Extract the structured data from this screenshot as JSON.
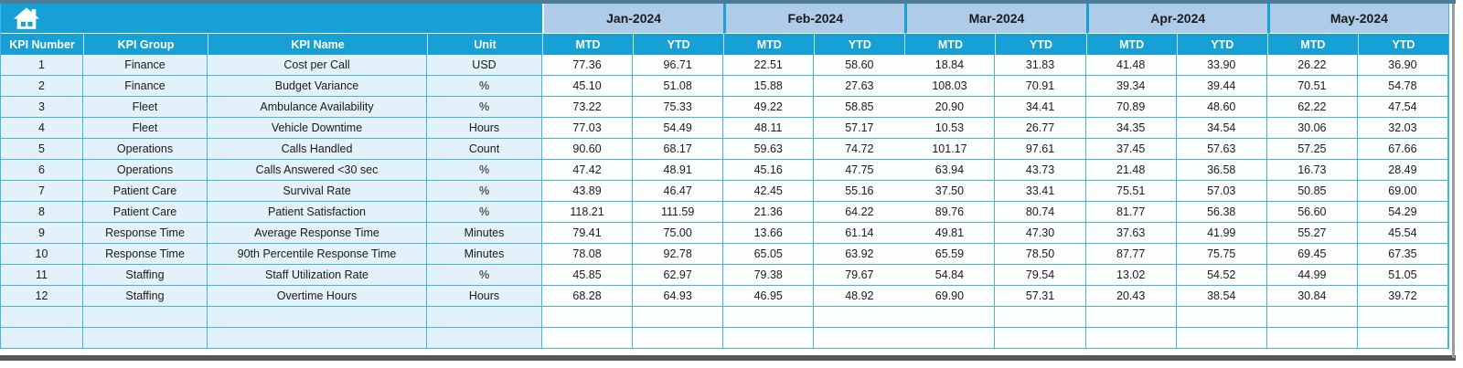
{
  "colors": {
    "header_cyan": "#17A0D6",
    "month_band": "#AECBEA",
    "row_fill": "#E3F1FA",
    "grid_line": "#3FB6E4",
    "frame_top": "#4D7B97",
    "frame_bottom": "#565656",
    "frame_side": "#9B9B9B",
    "header_text": "#FFFFFF",
    "body_text": "#1A1A1A"
  },
  "toolbar": {
    "home_icon": "home-icon"
  },
  "table": {
    "left_headers": [
      "KPI Number",
      "KPI Group",
      "KPI Name",
      "Unit"
    ],
    "months": [
      "Jan-2024",
      "Feb-2024",
      "Mar-2024",
      "Apr-2024",
      "May-2024"
    ],
    "sub_headers": [
      "MTD",
      "YTD"
    ],
    "rows": [
      {
        "kpi_number": "1",
        "kpi_group": "Finance",
        "kpi_name": "Cost per Call",
        "unit": "USD",
        "values": [
          "77.36",
          "96.71",
          "22.51",
          "58.60",
          "18.84",
          "31.83",
          "41.48",
          "33.90",
          "26.22",
          "36.90"
        ]
      },
      {
        "kpi_number": "2",
        "kpi_group": "Finance",
        "kpi_name": "Budget Variance",
        "unit": "%",
        "values": [
          "45.10",
          "51.08",
          "15.88",
          "27.63",
          "108.03",
          "70.91",
          "39.34",
          "39.44",
          "70.51",
          "54.78"
        ]
      },
      {
        "kpi_number": "3",
        "kpi_group": "Fleet",
        "kpi_name": "Ambulance Availability",
        "unit": "%",
        "values": [
          "73.22",
          "75.33",
          "49.22",
          "58.85",
          "20.90",
          "34.41",
          "70.89",
          "48.60",
          "62.22",
          "47.54"
        ]
      },
      {
        "kpi_number": "4",
        "kpi_group": "Fleet",
        "kpi_name": "Vehicle Downtime",
        "unit": "Hours",
        "values": [
          "77.03",
          "54.49",
          "48.11",
          "57.17",
          "10.53",
          "26.77",
          "34.35",
          "34.54",
          "30.06",
          "32.03"
        ]
      },
      {
        "kpi_number": "5",
        "kpi_group": "Operations",
        "kpi_name": "Calls Handled",
        "unit": "Count",
        "values": [
          "90.60",
          "68.17",
          "59.63",
          "74.72",
          "101.17",
          "97.61",
          "37.45",
          "57.63",
          "57.25",
          "67.66"
        ]
      },
      {
        "kpi_number": "6",
        "kpi_group": "Operations",
        "kpi_name": "Calls Answered <30 sec",
        "unit": "%",
        "values": [
          "47.42",
          "48.91",
          "45.16",
          "47.75",
          "63.94",
          "43.73",
          "21.48",
          "36.58",
          "16.73",
          "28.49"
        ]
      },
      {
        "kpi_number": "7",
        "kpi_group": "Patient Care",
        "kpi_name": "Survival Rate",
        "unit": "%",
        "values": [
          "43.89",
          "46.47",
          "42.45",
          "55.16",
          "37.50",
          "33.41",
          "75.51",
          "57.03",
          "50.85",
          "69.00"
        ]
      },
      {
        "kpi_number": "8",
        "kpi_group": "Patient Care",
        "kpi_name": "Patient Satisfaction",
        "unit": "%",
        "values": [
          "118.21",
          "111.59",
          "21.36",
          "64.22",
          "89.76",
          "80.74",
          "81.77",
          "56.38",
          "56.60",
          "54.29"
        ]
      },
      {
        "kpi_number": "9",
        "kpi_group": "Response Time",
        "kpi_name": "Average Response Time",
        "unit": "Minutes",
        "values": [
          "79.41",
          "75.00",
          "13.66",
          "61.14",
          "49.81",
          "47.30",
          "37.63",
          "41.99",
          "55.27",
          "45.54"
        ]
      },
      {
        "kpi_number": "10",
        "kpi_group": "Response Time",
        "kpi_name": "90th Percentile Response Time",
        "unit": "Minutes",
        "values": [
          "78.08",
          "92.78",
          "65.05",
          "63.92",
          "65.59",
          "78.50",
          "87.77",
          "75.75",
          "69.45",
          "67.35"
        ]
      },
      {
        "kpi_number": "11",
        "kpi_group": "Staffing",
        "kpi_name": "Staff Utilization Rate",
        "unit": "%",
        "values": [
          "45.85",
          "62.97",
          "79.38",
          "79.67",
          "54.84",
          "79.54",
          "13.02",
          "54.52",
          "44.99",
          "51.05"
        ]
      },
      {
        "kpi_number": "12",
        "kpi_group": "Staffing",
        "kpi_name": "Overtime Hours",
        "unit": "Hours",
        "values": [
          "68.28",
          "64.93",
          "46.95",
          "48.92",
          "69.90",
          "57.31",
          "20.43",
          "38.54",
          "30.84",
          "39.72"
        ]
      }
    ],
    "empty_rows": 2
  }
}
